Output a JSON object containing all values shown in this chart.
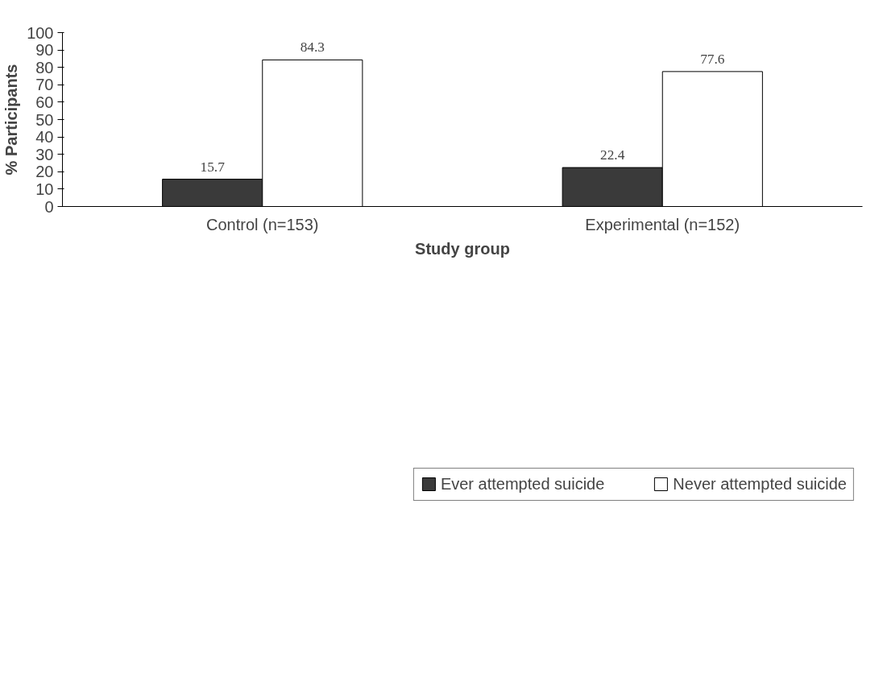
{
  "chart_data": {
    "type": "bar",
    "xlabel": "Study group",
    "ylabel": "% Participants",
    "categories": [
      "Control (n=153)",
      "Experimental (n=152)"
    ],
    "series": [
      {
        "name": "Ever attempted suicide",
        "color": "#3a3a3a",
        "values": [
          15.7,
          22.4
        ]
      },
      {
        "name": "Never attempted suicide",
        "color": "#ffffff",
        "values": [
          84.3,
          77.6
        ]
      }
    ],
    "ylim": [
      0,
      100
    ],
    "yticks": [
      0,
      10,
      20,
      30,
      40,
      50,
      60,
      70,
      80,
      90,
      100
    ],
    "data_labels": true,
    "grid": false,
    "legend": "bottom"
  }
}
